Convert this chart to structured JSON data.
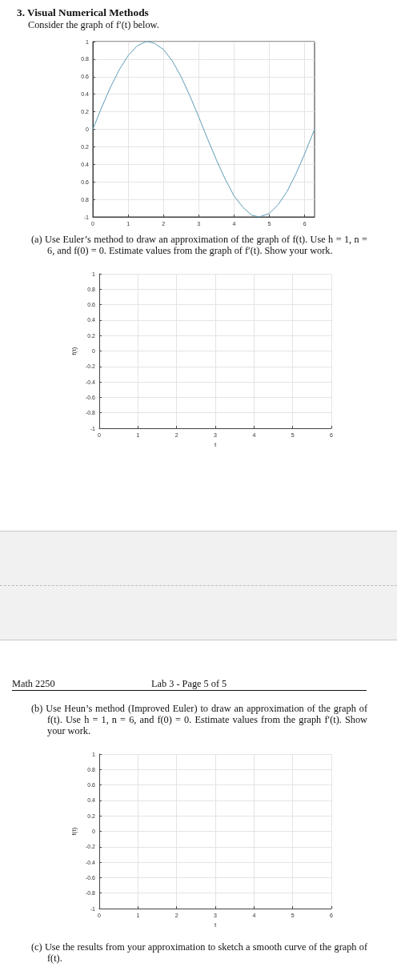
{
  "chart_data": [
    {
      "type": "line",
      "title": "3. Visual Numerical Methods",
      "subtitle": "Consider the graph of f′(t) below.",
      "color": "#5d9cb8",
      "x": [
        0,
        0.25,
        0.5,
        0.75,
        1,
        1.25,
        1.5,
        1.57,
        1.75,
        2,
        2.25,
        2.5,
        2.75,
        3,
        3.25,
        3.5,
        3.75,
        4,
        4.25,
        4.5,
        4.71,
        5,
        5.25,
        5.5,
        5.75,
        6,
        6.28
      ],
      "values": [
        0,
        0.25,
        0.48,
        0.68,
        0.84,
        0.95,
        1,
        1,
        0.98,
        0.91,
        0.78,
        0.6,
        0.38,
        0.14,
        -0.11,
        -0.35,
        -0.57,
        -0.76,
        -0.89,
        -0.98,
        -1,
        -0.96,
        -0.86,
        -0.71,
        -0.51,
        -0.28,
        0
      ],
      "xlim": [
        0,
        6.28
      ],
      "xticks": [
        0,
        1,
        2,
        3,
        4,
        5,
        6
      ],
      "ylim": [
        -1,
        1
      ],
      "yticks": [
        -1,
        {
          "value": -0.8,
          "label": "0.8"
        },
        {
          "value": -0.6,
          "label": "0.6"
        },
        {
          "value": -0.4,
          "label": "0.4"
        },
        {
          "value": -0.2,
          "label": "0.2"
        },
        0,
        0.2,
        0.4,
        0.6,
        0.8,
        1
      ],
      "grid": true
    },
    {
      "type": "line",
      "title": "(a) Use Euler’s method to draw an approximation of the graph of f(t). Use h = 1, n = 6, and f(0) = 0. Estimate values from the graph of f′(t). Show your work.",
      "xlabel": "t",
      "ylabel": "f(t)",
      "xlim": [
        0,
        6
      ],
      "xticks": [
        0,
        1,
        2,
        3,
        4,
        5,
        6
      ],
      "ylim": [
        -1,
        1
      ],
      "yticks": [
        -1,
        -0.8,
        -0.6,
        -0.4,
        -0.2,
        0,
        0.2,
        0.4,
        0.6,
        0.8,
        1
      ],
      "grid": true
    },
    {
      "type": "line",
      "title": "(b) Use Heun’s method (Improved Euler) to draw an approximation of the graph of f(t). Use h = 1, n = 6, and f(0) = 0. Estimate values from the graph f′(t). Show your work.",
      "annotations": [
        "Math 2250",
        "Lab 3 - Page 5 of 5",
        "(c) Use the results from your approximation to sketch a smooth curve of the graph of f(t)."
      ],
      "xlabel": "t",
      "ylabel": "f(t)",
      "xlim": [
        0,
        6
      ],
      "xticks": [
        0,
        1,
        2,
        3,
        4,
        5,
        6
      ],
      "ylim": [
        -1,
        1
      ],
      "yticks": [
        -1,
        -0.8,
        -0.6,
        -0.4,
        -0.2,
        0,
        0.2,
        0.4,
        0.6,
        0.8,
        1
      ],
      "grid": true
    }
  ]
}
